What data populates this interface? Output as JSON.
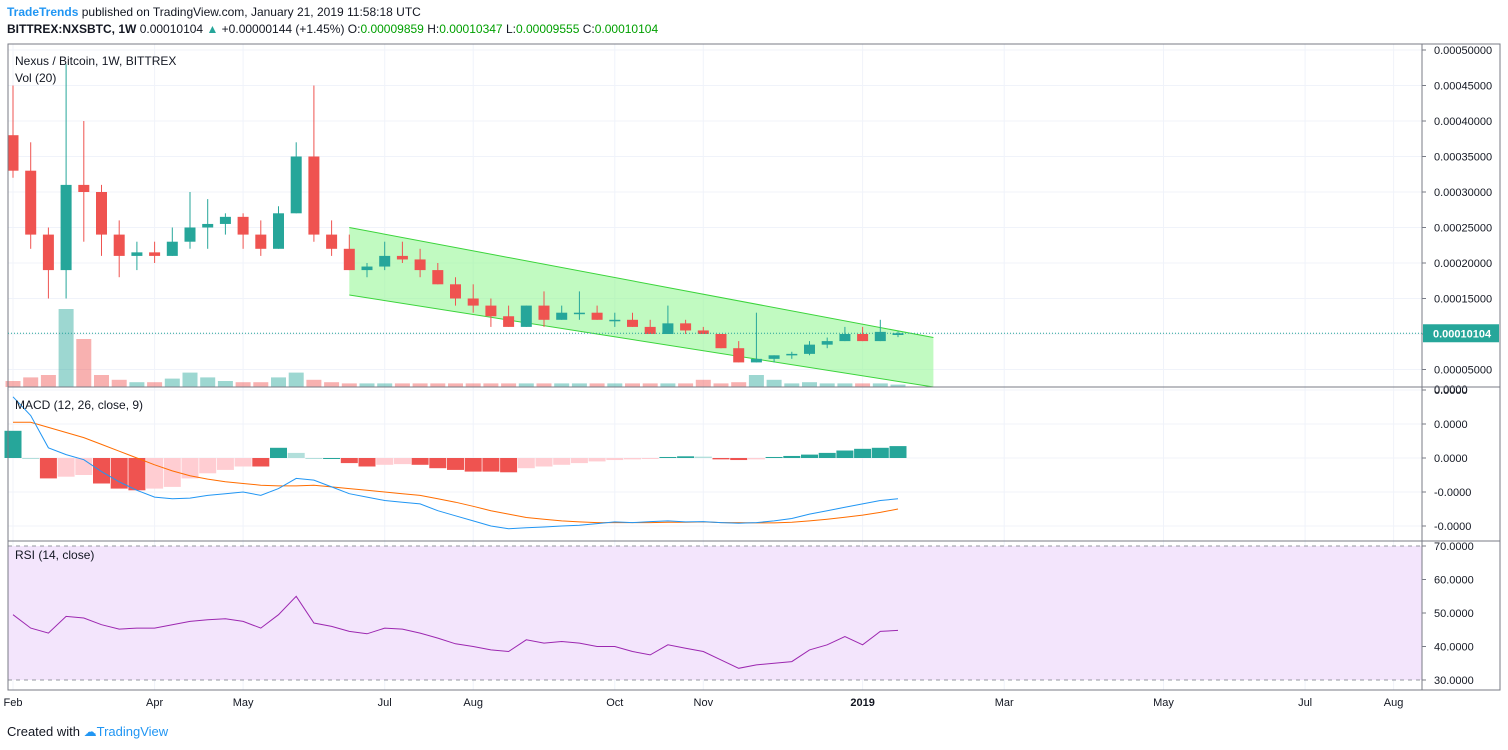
{
  "header": {
    "publisher": "TradeTrends",
    "published_text": "published on TradingView.com, January 21, 2019 11:58:18 UTC",
    "symbol": "BITTREX:NXSBTC, 1W",
    "last": "0.00010104",
    "change": "+0.00000144 (+1.45%)",
    "open_label": "O:",
    "open": "0.00009859",
    "high_label": "H:",
    "high": "0.00010347",
    "low_label": "L:",
    "low": "0.00009555",
    "close_label": "C:",
    "close": "0.00010104"
  },
  "footer": {
    "created_with": "Created with",
    "brand": "TradingView"
  },
  "colors": {
    "up": "#26a69a",
    "down": "#ef5350",
    "macd": "#2196f3",
    "signal": "#ff6d00",
    "rsi": "#9c27b0",
    "channel": "#8ef58e"
  },
  "chart_data": [
    {
      "type": "candlestick",
      "title": "Nexus / Bitcoin, 1W, BITTREX",
      "volume_label": "Vol (20)",
      "price_labels": [
        "0.00050000",
        "0.00045000",
        "0.00040000",
        "0.00035000",
        "0.00030000",
        "0.00025000",
        "0.00020000",
        "0.00015000",
        "0.00010000",
        "0.00005000"
      ],
      "price_ticks": [
        0.0005,
        0.00045,
        0.0004,
        0.00035,
        0.0003,
        0.00025,
        0.0002,
        0.00015,
        0.0001,
        5e-05
      ],
      "last_price_label": "0.00010104",
      "last_price": 0.00010104,
      "x_ticks": [
        "Feb",
        "Apr",
        "May",
        "Jul",
        "Aug",
        "Oct",
        "Nov",
        "2019",
        "Mar",
        "May",
        "Jul",
        "Aug"
      ],
      "x_tick_weeks": [
        0,
        8,
        13,
        21,
        26,
        34,
        39,
        48,
        56,
        65,
        73,
        78
      ],
      "ohlc": [
        [
          0.00038,
          0.00045,
          0.00032,
          0.00033
        ],
        [
          0.00033,
          0.00037,
          0.00022,
          0.00024
        ],
        [
          0.00024,
          0.00025,
          0.00015,
          0.00019
        ],
        [
          0.00019,
          0.00048,
          0.00015,
          0.00031
        ],
        [
          0.00031,
          0.0004,
          0.00023,
          0.0003
        ],
        [
          0.0003,
          0.00031,
          0.00021,
          0.00024
        ],
        [
          0.00024,
          0.00026,
          0.00018,
          0.00021
        ],
        [
          0.00021,
          0.00023,
          0.00019,
          0.000215
        ],
        [
          0.000215,
          0.00023,
          0.0002,
          0.00021
        ],
        [
          0.00021,
          0.00025,
          0.00021,
          0.00023
        ],
        [
          0.00023,
          0.0003,
          0.00022,
          0.00025
        ],
        [
          0.00025,
          0.00029,
          0.00022,
          0.000255
        ],
        [
          0.000255,
          0.00027,
          0.00024,
          0.000265
        ],
        [
          0.000265,
          0.00027,
          0.00022,
          0.00024
        ],
        [
          0.00024,
          0.00026,
          0.00021,
          0.00022
        ],
        [
          0.00022,
          0.00028,
          0.00022,
          0.00027
        ],
        [
          0.00027,
          0.00037,
          0.00027,
          0.00035
        ],
        [
          0.00035,
          0.00045,
          0.00023,
          0.00024
        ],
        [
          0.00024,
          0.00026,
          0.00021,
          0.00022
        ],
        [
          0.00022,
          0.00024,
          0.00019,
          0.00019
        ],
        [
          0.00019,
          0.0002,
          0.00018,
          0.000195
        ],
        [
          0.000195,
          0.00023,
          0.00019,
          0.00021
        ],
        [
          0.00021,
          0.00023,
          0.0002,
          0.000205
        ],
        [
          0.000205,
          0.00022,
          0.00018,
          0.00019
        ],
        [
          0.00019,
          0.0002,
          0.00017,
          0.00017
        ],
        [
          0.00017,
          0.00018,
          0.00014,
          0.00015
        ],
        [
          0.00015,
          0.00017,
          0.00013,
          0.00014
        ],
        [
          0.00014,
          0.00015,
          0.00011,
          0.000125
        ],
        [
          0.000125,
          0.00014,
          0.00011,
          0.00011
        ],
        [
          0.00011,
          0.00014,
          0.00011,
          0.00014
        ],
        [
          0.00014,
          0.00016,
          0.00011,
          0.00012
        ],
        [
          0.00012,
          0.00014,
          0.00012,
          0.00013
        ],
        [
          0.00013,
          0.00016,
          0.00012,
          0.00013
        ],
        [
          0.00013,
          0.00014,
          0.00012,
          0.00012
        ],
        [
          0.00012,
          0.00013,
          0.00011,
          0.00012
        ],
        [
          0.00012,
          0.00013,
          0.00011,
          0.00011
        ],
        [
          0.00011,
          0.00012,
          0.0001,
          0.0001
        ],
        [
          0.0001,
          0.00014,
          0.0001,
          0.000115
        ],
        [
          0.000115,
          0.00012,
          0.0001,
          0.000105
        ],
        [
          0.000105,
          0.00011,
          0.0001,
          0.0001
        ],
        [
          0.0001,
          0.0001,
          8e-05,
          8e-05
        ],
        [
          8e-05,
          9e-05,
          6e-05,
          6e-05
        ],
        [
          6e-05,
          0.00013,
          6e-05,
          6.5e-05
        ],
        [
          6.5e-05,
          7e-05,
          6e-05,
          7e-05
        ],
        [
          7e-05,
          7.5e-05,
          6.5e-05,
          7.2e-05
        ],
        [
          7.2e-05,
          9e-05,
          7e-05,
          8.5e-05
        ],
        [
          8.5e-05,
          9.5e-05,
          8e-05,
          9e-05
        ],
        [
          9e-05,
          0.00011,
          9e-05,
          0.0001
        ],
        [
          0.0001,
          0.00011,
          9e-05,
          9e-05
        ],
        [
          9e-05,
          0.00012,
          9e-05,
          0.000103
        ],
        [
          9.859e-05,
          0.00010347,
          9.555e-05,
          0.00010104
        ]
      ],
      "volume": [
        5,
        8,
        10,
        65,
        40,
        10,
        6,
        4,
        4,
        7,
        12,
        8,
        5,
        4,
        4,
        8,
        12,
        6,
        4,
        3,
        3,
        3,
        3,
        3,
        3,
        3,
        3,
        3,
        3,
        3,
        3,
        3,
        3,
        3,
        3,
        3,
        3,
        3,
        3,
        6,
        3,
        4,
        10,
        6,
        3,
        4,
        3,
        3,
        3,
        3,
        2
      ],
      "channel": {
        "upper": [
          [
            19,
            0.00025
          ],
          [
            52,
            9.5e-05
          ]
        ],
        "lower": [
          [
            19,
            0.000155
          ],
          [
            52,
            0.0
          ]
        ]
      }
    },
    {
      "type": "macd",
      "title": "MACD (12, 26, close, 9)",
      "y_labels": [
        "0.0000",
        "0.0000",
        "0.0000",
        "-0.0000",
        "-0.0000"
      ],
      "y_ticks": [
        2,
        1,
        0,
        -1,
        -2
      ],
      "histogram": [
        0.8,
        0,
        -0.6,
        -0.55,
        -0.5,
        -0.75,
        -0.9,
        -0.95,
        -0.9,
        -0.85,
        -0.6,
        -0.45,
        -0.35,
        -0.25,
        -0.25,
        0.3,
        0.15,
        0,
        0,
        -0.15,
        -0.25,
        -0.2,
        -0.18,
        -0.2,
        -0.3,
        -0.35,
        -0.4,
        -0.4,
        -0.42,
        -0.3,
        -0.25,
        -0.2,
        -0.15,
        -0.1,
        -0.06,
        -0.04,
        -0.03,
        0.03,
        0.05,
        0.04,
        -0.04,
        -0.06,
        -0.04,
        0.03,
        0.06,
        0.1,
        0.15,
        0.22,
        0.27,
        0.3,
        0.35
      ],
      "macd_line": [
        1.8,
        1.25,
        0.3,
        0.1,
        -0.05,
        -0.4,
        -0.7,
        -0.95,
        -1.15,
        -1.2,
        -1.18,
        -1.1,
        -1.05,
        -1.0,
        -1.1,
        -0.9,
        -0.6,
        -0.65,
        -0.85,
        -1.05,
        -1.15,
        -1.25,
        -1.3,
        -1.35,
        -1.55,
        -1.7,
        -1.85,
        -2.0,
        -2.08,
        -2.05,
        -2.03,
        -2.0,
        -1.98,
        -1.93,
        -1.88,
        -1.9,
        -1.87,
        -1.85,
        -1.88,
        -1.87,
        -1.9,
        -1.92,
        -1.9,
        -1.85,
        -1.78,
        -1.65,
        -1.55,
        -1.45,
        -1.35,
        -1.25,
        -1.2
      ],
      "signal_line": [
        1.05,
        1.05,
        0.9,
        0.75,
        0.6,
        0.4,
        0.2,
        0.0,
        -0.2,
        -0.38,
        -0.52,
        -0.62,
        -0.7,
        -0.75,
        -0.8,
        -0.82,
        -0.82,
        -0.8,
        -0.85,
        -0.9,
        -0.95,
        -1.0,
        -1.05,
        -1.1,
        -1.2,
        -1.3,
        -1.42,
        -1.55,
        -1.65,
        -1.75,
        -1.8,
        -1.85,
        -1.88,
        -1.9,
        -1.9,
        -1.9,
        -1.9,
        -1.89,
        -1.89,
        -1.88,
        -1.9,
        -1.9,
        -1.91,
        -1.91,
        -1.89,
        -1.85,
        -1.8,
        -1.74,
        -1.68,
        -1.6,
        -1.5
      ]
    },
    {
      "type": "line",
      "title": "RSI (14, close)",
      "y_labels": [
        "70.0000",
        "60.0000",
        "50.0000",
        "40.0000",
        "30.0000"
      ],
      "y_ticks": [
        70,
        60,
        50,
        40,
        30
      ],
      "band": [
        30,
        70
      ],
      "values": [
        49.5,
        45.5,
        44,
        49,
        48.5,
        46.5,
        45.2,
        45.5,
        45.5,
        46.5,
        47.5,
        48,
        48.3,
        47.5,
        45.5,
        49.5,
        55,
        47,
        46,
        44.5,
        43.8,
        45.5,
        45.2,
        44,
        42.5,
        40.8,
        40,
        39,
        38.5,
        42,
        41,
        41.5,
        41,
        40,
        40,
        38.5,
        37.5,
        40.5,
        39.5,
        38.5,
        36,
        33.5,
        34.5,
        35,
        35.5,
        39,
        40.5,
        43,
        40.5,
        44.5,
        44.8
      ]
    }
  ]
}
